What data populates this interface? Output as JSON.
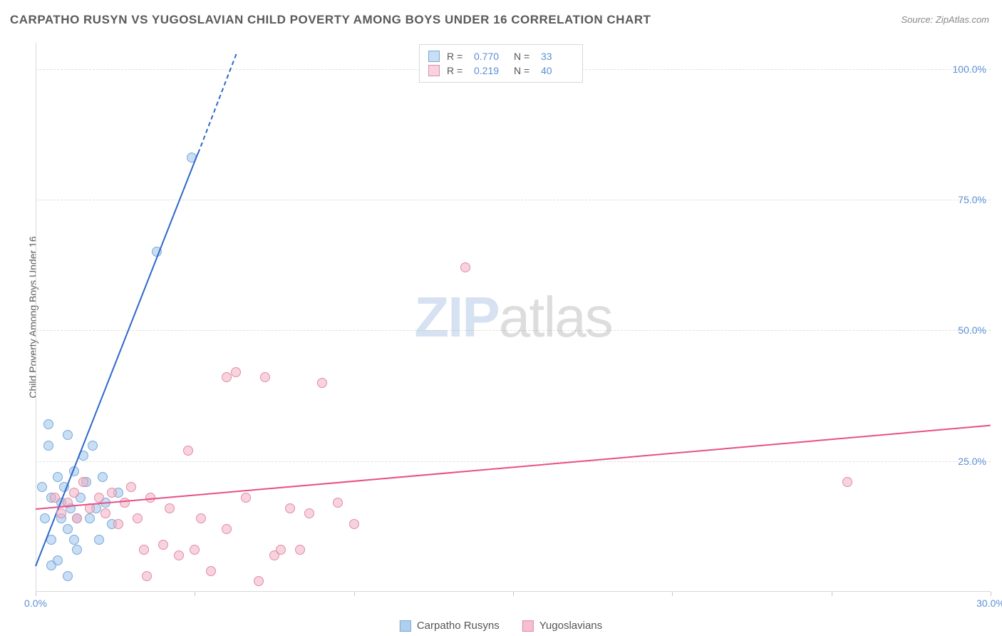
{
  "title": "CARPATHO RUSYN VS YUGOSLAVIAN CHILD POVERTY AMONG BOYS UNDER 16 CORRELATION CHART",
  "source": "Source: ZipAtlas.com",
  "y_axis_label": "Child Poverty Among Boys Under 16",
  "watermark": {
    "part1": "ZIP",
    "part2": "atlas"
  },
  "chart": {
    "type": "scatter",
    "background_color": "#ffffff",
    "grid_color": "#e0e0e0",
    "axis_color": "#d8d8d8",
    "tick_color": "#5b8fd6",
    "marker_radius": 7,
    "marker_stroke": 1.2,
    "xlim": [
      0,
      30
    ],
    "ylim": [
      0,
      105
    ],
    "x_ticks": [
      {
        "v": 0,
        "label": "0.0%"
      },
      {
        "v": 30,
        "label": "30.0%"
      }
    ],
    "x_tick_marks": [
      0,
      5,
      10,
      15,
      20,
      25,
      30
    ],
    "y_ticks": [
      {
        "v": 25,
        "label": "25.0%"
      },
      {
        "v": 50,
        "label": "50.0%"
      },
      {
        "v": 75,
        "label": "75.0%"
      },
      {
        "v": 100,
        "label": "100.0%"
      }
    ],
    "series": [
      {
        "name": "Carpatho Rusyns",
        "fill": "rgba(155,195,235,0.55)",
        "stroke": "#7aa9d8",
        "trend_color": "#2f67c9",
        "trend": {
          "x1": 0,
          "y1": 5,
          "x2": 5.1,
          "y2": 84,
          "dash_to_x": 6.3,
          "dash_to_y": 103
        },
        "R": "0.770",
        "N": "33",
        "points": [
          [
            0.2,
            20
          ],
          [
            0.3,
            14
          ],
          [
            0.4,
            28
          ],
          [
            0.4,
            32
          ],
          [
            0.5,
            18
          ],
          [
            0.5,
            10
          ],
          [
            0.5,
            5
          ],
          [
            0.7,
            6
          ],
          [
            0.7,
            22
          ],
          [
            0.8,
            14
          ],
          [
            0.8,
            17
          ],
          [
            0.9,
            20
          ],
          [
            1.0,
            30
          ],
          [
            1.0,
            12
          ],
          [
            1.1,
            16
          ],
          [
            1.2,
            23
          ],
          [
            1.2,
            10
          ],
          [
            1.3,
            8
          ],
          [
            1.3,
            14
          ],
          [
            1.4,
            18
          ],
          [
            1.5,
            26
          ],
          [
            1.6,
            21
          ],
          [
            1.7,
            14
          ],
          [
            1.8,
            28
          ],
          [
            1.9,
            16
          ],
          [
            2.0,
            10
          ],
          [
            2.1,
            22
          ],
          [
            2.2,
            17
          ],
          [
            2.4,
            13
          ],
          [
            2.6,
            19
          ],
          [
            1.0,
            3
          ],
          [
            3.8,
            65
          ],
          [
            4.9,
            83
          ]
        ]
      },
      {
        "name": "Yugoslavians",
        "fill": "rgba(242,175,195,0.55)",
        "stroke": "#e08ca6",
        "trend_color": "#e84f87",
        "trend": {
          "x1": 0,
          "y1": 16,
          "x2": 30,
          "y2": 32
        },
        "R": "0.219",
        "N": "40",
        "points": [
          [
            0.6,
            18
          ],
          [
            0.8,
            15
          ],
          [
            1.0,
            17
          ],
          [
            1.2,
            19
          ],
          [
            1.3,
            14
          ],
          [
            1.5,
            21
          ],
          [
            1.7,
            16
          ],
          [
            2.0,
            18
          ],
          [
            2.2,
            15
          ],
          [
            2.4,
            19
          ],
          [
            2.6,
            13
          ],
          [
            2.8,
            17
          ],
          [
            3.0,
            20
          ],
          [
            3.2,
            14
          ],
          [
            3.4,
            8
          ],
          [
            3.5,
            3
          ],
          [
            3.6,
            18
          ],
          [
            4.0,
            9
          ],
          [
            4.2,
            16
          ],
          [
            4.5,
            7
          ],
          [
            4.8,
            27
          ],
          [
            5.0,
            8
          ],
          [
            5.2,
            14
          ],
          [
            5.5,
            4
          ],
          [
            6.0,
            41
          ],
          [
            6.3,
            42
          ],
          [
            6.6,
            18
          ],
          [
            7.0,
            2
          ],
          [
            7.2,
            41
          ],
          [
            7.5,
            7
          ],
          [
            7.7,
            8
          ],
          [
            8.0,
            16
          ],
          [
            8.3,
            8
          ],
          [
            8.6,
            15
          ],
          [
            9.0,
            40
          ],
          [
            9.5,
            17
          ],
          [
            10.0,
            13
          ],
          [
            13.5,
            62
          ],
          [
            25.5,
            21
          ],
          [
            6.0,
            12
          ]
        ]
      }
    ]
  },
  "legend_top_labels": {
    "R": "R =",
    "N": "N ="
  },
  "legend_bottom": [
    {
      "label": "Carpatho Rusyns",
      "fill": "rgba(155,195,235,0.8)",
      "stroke": "#7aa9d8"
    },
    {
      "label": "Yugoslavians",
      "fill": "rgba(242,175,195,0.8)",
      "stroke": "#e08ca6"
    }
  ]
}
